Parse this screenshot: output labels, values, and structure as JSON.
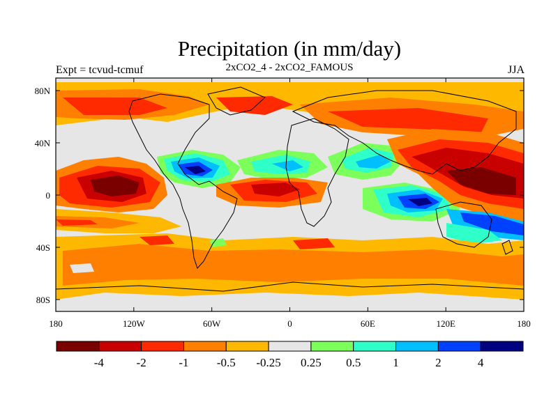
{
  "header": {
    "title": "Precipitation (in mm/day)",
    "expt": "Expt = tcvud-tcmuf",
    "subtitle": "2xCO2_4 - 2xCO2_FAMOUS",
    "season": "JJA"
  },
  "map": {
    "lon_ticks": [
      "180",
      "120W",
      "60W",
      "0",
      "60E",
      "120E",
      "180"
    ],
    "lat_ticks": [
      "80N",
      "40N",
      "0",
      "40S",
      "80S"
    ]
  },
  "colorbar": {
    "colors": [
      "#7a0000",
      "#c80000",
      "#ff2a00",
      "#ff7f00",
      "#ffb800",
      "#e6e6e6",
      "#7cff5a",
      "#2fffc8",
      "#00bfff",
      "#0040ff",
      "#000080"
    ],
    "labels": [
      "-4",
      "-2",
      "-1",
      "-0.5",
      "-0.25",
      "0.25",
      "0.5",
      "1",
      "2",
      "4"
    ]
  }
}
